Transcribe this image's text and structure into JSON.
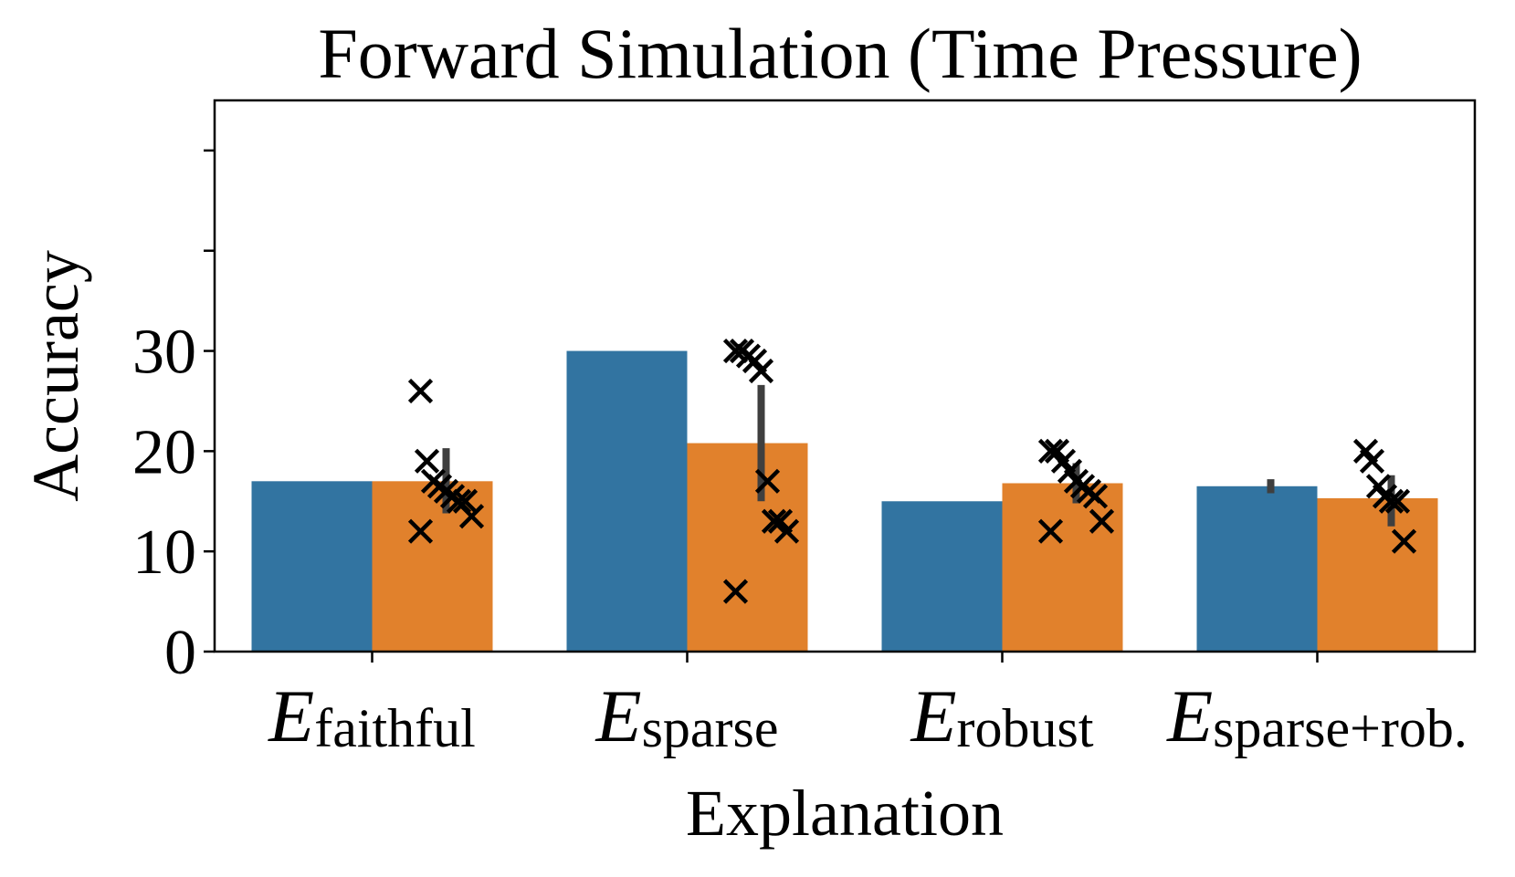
{
  "chart_data": {
    "type": "bar",
    "title": "Forward Simulation (Time Pressure)",
    "xlabel": "Explanation",
    "ylabel": "Accuracy",
    "categories": [
      {
        "main": "E",
        "sub": "faithful"
      },
      {
        "main": "E",
        "sub": "sparse"
      },
      {
        "main": "E",
        "sub": "robust"
      },
      {
        "main": "E",
        "sub": "sparse+rob."
      }
    ],
    "yticks": [
      0,
      10,
      20,
      30
    ],
    "ylim": [
      0,
      55
    ],
    "grid": false,
    "legend": "none",
    "series": [
      {
        "color": "#3274a1",
        "values": [
          17.0,
          30.0,
          15.0,
          16.5
        ],
        "error_bars": [
          null,
          null,
          null,
          [
            15.8,
            17.2
          ]
        ],
        "points": [
          [],
          [],
          [],
          []
        ]
      },
      {
        "color": "#e1812c",
        "values": [
          17.0,
          20.8,
          16.8,
          15.3
        ],
        "error_bars": [
          [
            13.8,
            20.3
          ],
          [
            15.0,
            26.6
          ],
          [
            14.8,
            18.8
          ],
          [
            12.5,
            17.6
          ]
        ],
        "points": [
          [
            26,
            19,
            17,
            16.5,
            16,
            15.5,
            15,
            15,
            13.5,
            12
          ],
          [
            30,
            30,
            29.5,
            29,
            28,
            17,
            13,
            13,
            12,
            6
          ],
          [
            20,
            20,
            19,
            18,
            17,
            16.5,
            16,
            15.5,
            13,
            12
          ],
          [
            20,
            19,
            16.5,
            15.5,
            15,
            15,
            11
          ]
        ]
      }
    ],
    "marker_color": "#000000",
    "errorbar_color": "#3f3f3f"
  }
}
